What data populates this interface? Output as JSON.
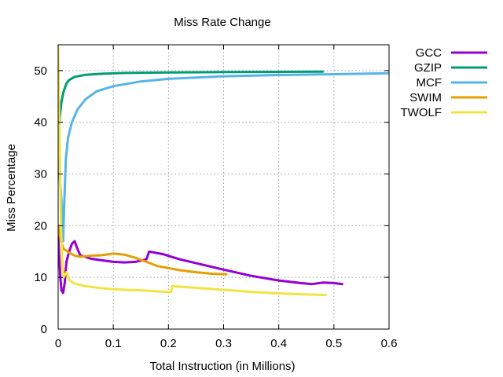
{
  "chart_data": {
    "type": "line",
    "title": "Miss Rate Change",
    "xlabel": "Total Instruction (in Millions)",
    "ylabel": "Miss Percentage",
    "xlim": [
      0,
      0.6
    ],
    "ylim": [
      0,
      55
    ],
    "x_ticks": [
      0,
      0.1,
      0.2,
      0.3,
      0.4,
      0.5,
      0.6
    ],
    "x_tick_labels": [
      "0",
      "0.1",
      "0.2",
      "0.3",
      "0.4",
      "0.5",
      "0.6"
    ],
    "y_ticks": [
      0,
      10,
      20,
      30,
      40,
      50
    ],
    "y_tick_labels": [
      "0",
      "10",
      "20",
      "30",
      "40",
      "50"
    ],
    "grid": true,
    "legend_position": "outside top-right",
    "series": [
      {
        "name": "GCC",
        "color": "#9400d3",
        "points": [
          [
            0,
            18
          ],
          [
            0.002,
            14
          ],
          [
            0.004,
            10
          ],
          [
            0.006,
            7.5
          ],
          [
            0.009,
            7
          ],
          [
            0.012,
            9
          ],
          [
            0.015,
            13
          ],
          [
            0.02,
            15
          ],
          [
            0.025,
            16.5
          ],
          [
            0.03,
            17
          ],
          [
            0.035,
            15.5
          ],
          [
            0.04,
            14.3
          ],
          [
            0.06,
            13.6
          ],
          [
            0.08,
            13.3
          ],
          [
            0.1,
            13
          ],
          [
            0.12,
            12.9
          ],
          [
            0.14,
            13
          ],
          [
            0.16,
            13.5
          ],
          [
            0.165,
            15
          ],
          [
            0.19,
            14.5
          ],
          [
            0.22,
            13.5
          ],
          [
            0.26,
            12.5
          ],
          [
            0.3,
            11.5
          ],
          [
            0.35,
            10.3
          ],
          [
            0.4,
            9.4
          ],
          [
            0.44,
            8.9
          ],
          [
            0.46,
            8.7
          ],
          [
            0.48,
            9
          ],
          [
            0.5,
            8.9
          ],
          [
            0.515,
            8.7
          ]
        ]
      },
      {
        "name": "GZIP",
        "color": "#009e73",
        "points": [
          [
            0,
            36
          ],
          [
            0.003,
            41
          ],
          [
            0.006,
            44
          ],
          [
            0.01,
            46
          ],
          [
            0.015,
            47.5
          ],
          [
            0.02,
            48.2
          ],
          [
            0.03,
            48.8
          ],
          [
            0.05,
            49.2
          ],
          [
            0.08,
            49.4
          ],
          [
            0.12,
            49.55
          ],
          [
            0.2,
            49.65
          ],
          [
            0.3,
            49.72
          ],
          [
            0.4,
            49.76
          ],
          [
            0.48,
            49.8
          ]
        ]
      },
      {
        "name": "MCF",
        "color": "#56b4e9",
        "points": [
          [
            0,
            33
          ],
          [
            0.006,
            25
          ],
          [
            0.009,
            17
          ],
          [
            0.011,
            24
          ],
          [
            0.014,
            33
          ],
          [
            0.018,
            37
          ],
          [
            0.025,
            40
          ],
          [
            0.035,
            42.5
          ],
          [
            0.05,
            44.5
          ],
          [
            0.07,
            46
          ],
          [
            0.1,
            47
          ],
          [
            0.15,
            47.9
          ],
          [
            0.2,
            48.4
          ],
          [
            0.3,
            48.9
          ],
          [
            0.4,
            49.15
          ],
          [
            0.5,
            49.3
          ],
          [
            0.6,
            49.5
          ]
        ]
      },
      {
        "name": "SWIM",
        "color": "#e69f00",
        "points": [
          [
            0,
            20
          ],
          [
            0.005,
            17
          ],
          [
            0.01,
            15.5
          ],
          [
            0.02,
            14.8
          ],
          [
            0.03,
            14.2
          ],
          [
            0.04,
            14
          ],
          [
            0.06,
            14.2
          ],
          [
            0.08,
            14.3
          ],
          [
            0.1,
            14.6
          ],
          [
            0.12,
            14.4
          ],
          [
            0.14,
            13.8
          ],
          [
            0.16,
            13
          ],
          [
            0.18,
            12.2
          ],
          [
            0.2,
            11.8
          ],
          [
            0.22,
            11.4
          ],
          [
            0.25,
            11
          ],
          [
            0.28,
            10.7
          ],
          [
            0.305,
            10.6
          ]
        ]
      },
      {
        "name": "TWOLF",
        "color": "#f0e442",
        "points": [
          [
            0,
            55
          ],
          [
            0.002,
            40
          ],
          [
            0.005,
            20
          ],
          [
            0.008,
            12
          ],
          [
            0.01,
            10
          ],
          [
            0.015,
            11
          ],
          [
            0.02,
            9.5
          ],
          [
            0.03,
            8.8
          ],
          [
            0.05,
            8.3
          ],
          [
            0.08,
            7.9
          ],
          [
            0.1,
            7.7
          ],
          [
            0.12,
            7.6
          ],
          [
            0.15,
            7.5
          ],
          [
            0.18,
            7.3
          ],
          [
            0.2,
            7.2
          ],
          [
            0.205,
            7.2
          ],
          [
            0.207,
            8.3
          ],
          [
            0.22,
            8.2
          ],
          [
            0.26,
            7.9
          ],
          [
            0.3,
            7.6
          ],
          [
            0.35,
            7.2
          ],
          [
            0.4,
            6.9
          ],
          [
            0.45,
            6.7
          ],
          [
            0.485,
            6.6
          ]
        ]
      }
    ]
  }
}
